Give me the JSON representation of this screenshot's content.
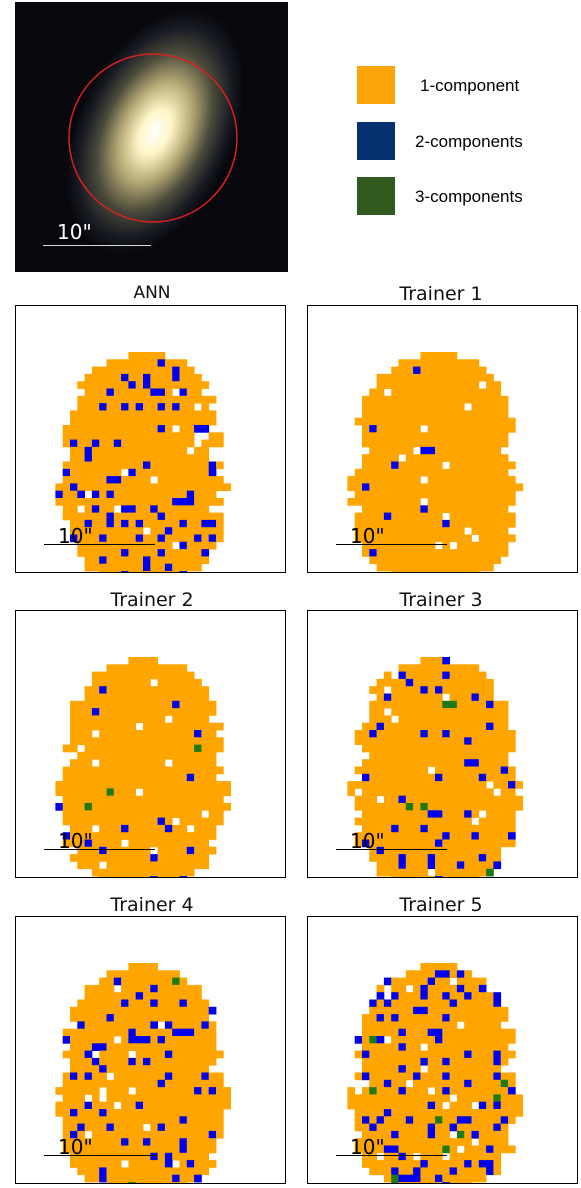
{
  "image_panel": {
    "scale_label": "10\"",
    "circle_color": "#d62020"
  },
  "legend": [
    {
      "label": "1-component",
      "color": "#fca50a"
    },
    {
      "label": "2-components",
      "color": "#06306e"
    },
    {
      "label": "3-components",
      "color": "#315a1e"
    }
  ],
  "map_colors": {
    "1": "#ffa500",
    "2": "#0000ee",
    "3": "#1e7a14"
  },
  "panels": [
    {
      "title": "ANN",
      "scale_label": "10\"",
      "n2": 70,
      "n3": 0,
      "seed": 11
    },
    {
      "title": "Trainer 1",
      "scale_label": "10\"",
      "n2": 10,
      "n3": 0,
      "seed": 23
    },
    {
      "title": "Trainer 2",
      "scale_label": "10\"",
      "n2": 16,
      "n3": 3,
      "seed": 37
    },
    {
      "title": "Trainer 3",
      "scale_label": "10\"",
      "n2": 42,
      "n3": 5,
      "seed": 41
    },
    {
      "title": "Trainer 4",
      "scale_label": "10\"",
      "n2": 58,
      "n3": 2,
      "seed": 53
    },
    {
      "title": "Trainer 5",
      "scale_label": "10\"",
      "n2": 80,
      "n3": 9,
      "seed": 67
    }
  ]
}
